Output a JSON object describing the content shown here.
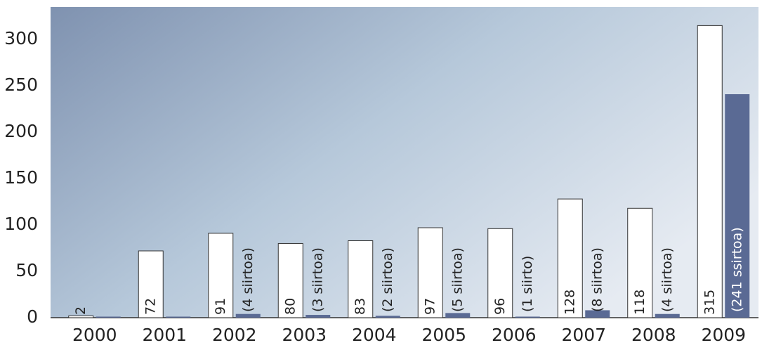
{
  "chart_data": {
    "type": "bar",
    "categories": [
      "2000",
      "2001",
      "2002",
      "2003",
      "2004",
      "2005",
      "2006",
      "2007",
      "2008",
      "2009"
    ],
    "series": [
      {
        "color": "#ffffff",
        "values": [
          2,
          72,
          91,
          80,
          83,
          97,
          96,
          128,
          118,
          315
        ]
      },
      {
        "color": "#5a6a94",
        "values": [
          0,
          0,
          4,
          3,
          2,
          5,
          1,
          8,
          4,
          241
        ],
        "value_labels": [
          null,
          null,
          "(4 siirtoa)",
          "(3 siirtoa)",
          "(2 siirtoa)",
          "(5 siirtoa)",
          "(1 siirto)",
          "(8 siirtoa)",
          "(4 siirtoa)",
          "(241 ssirtoa)"
        ]
      }
    ],
    "ylim": [
      0,
      335
    ],
    "yticks": [
      0,
      50,
      100,
      150,
      200,
      250,
      300
    ]
  }
}
